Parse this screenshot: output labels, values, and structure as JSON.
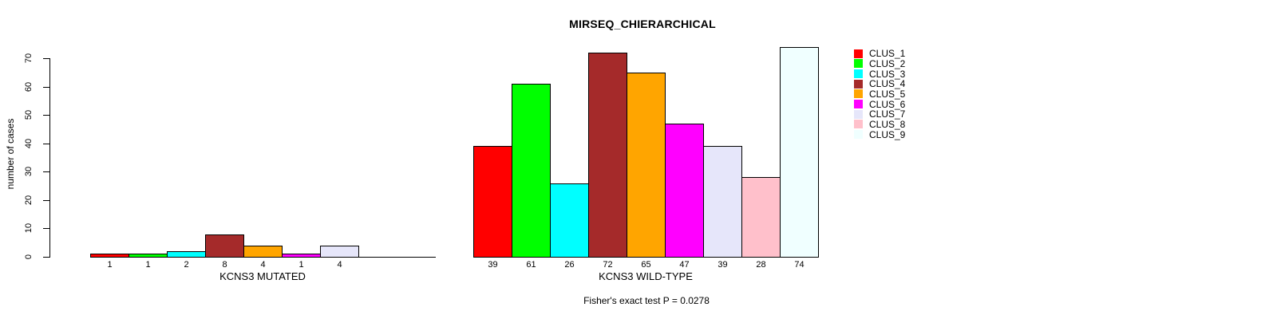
{
  "chart_data": {
    "type": "bar",
    "title": "MIRSEQ_CHIERARCHICAL",
    "ylabel": "number of cases",
    "xlabel": "",
    "ylim": [
      0,
      70
    ],
    "yticks": [
      0,
      10,
      20,
      30,
      40,
      50,
      60,
      70
    ],
    "grid": false,
    "legend_position": "right",
    "clusters": [
      {
        "name": "CLUS_1",
        "color": "#FF0000"
      },
      {
        "name": "CLUS_2",
        "color": "#00FF00"
      },
      {
        "name": "CLUS_3",
        "color": "#00FFFF"
      },
      {
        "name": "CLUS_4",
        "color": "#A52A2A"
      },
      {
        "name": "CLUS_5",
        "color": "#FFA500"
      },
      {
        "name": "CLUS_6",
        "color": "#FF00FF"
      },
      {
        "name": "CLUS_7",
        "color": "#E6E6FA"
      },
      {
        "name": "CLUS_8",
        "color": "#FFC0CB"
      },
      {
        "name": "CLUS_9",
        "color": "#F0FFFF"
      }
    ],
    "groups": [
      {
        "label": "KCNS3 MUTATED",
        "values": [
          1,
          1,
          2,
          8,
          4,
          1,
          4,
          0,
          0
        ]
      },
      {
        "label": "KCNS3 WILD-TYPE",
        "values": [
          39,
          61,
          26,
          72,
          65,
          47,
          39,
          28,
          74
        ]
      }
    ],
    "annotation": "Fisher's exact test P = 0.0278"
  }
}
